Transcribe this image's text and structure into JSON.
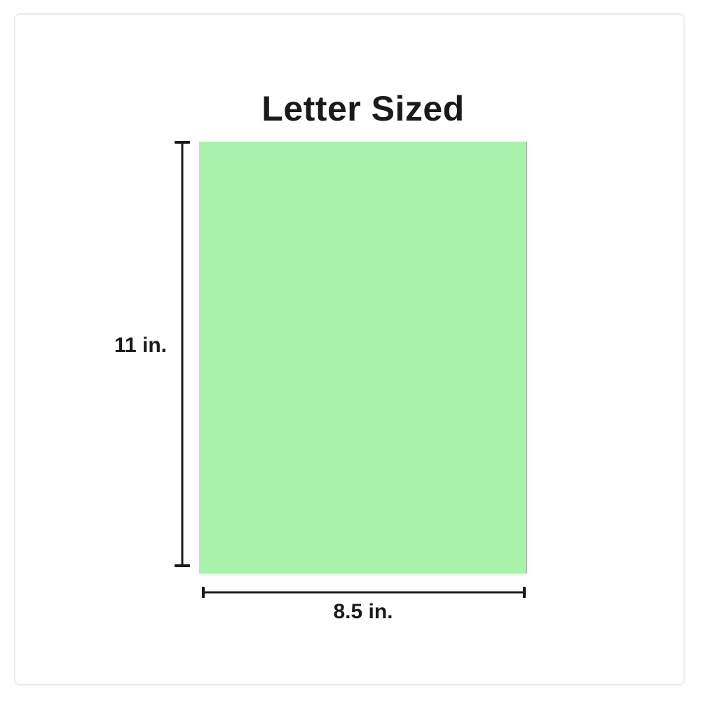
{
  "diagram": {
    "title": "Letter Sized",
    "height_label": "11 in.",
    "width_label": "8.5 in.",
    "paper": {
      "name": "letter-sized-sheet",
      "width_in": 8.5,
      "height_in": 11
    }
  },
  "colors": {
    "paper": "#a8f2ab",
    "line": "#1b1b1b",
    "text": "#1a1a1a",
    "frame": "#ececec"
  }
}
